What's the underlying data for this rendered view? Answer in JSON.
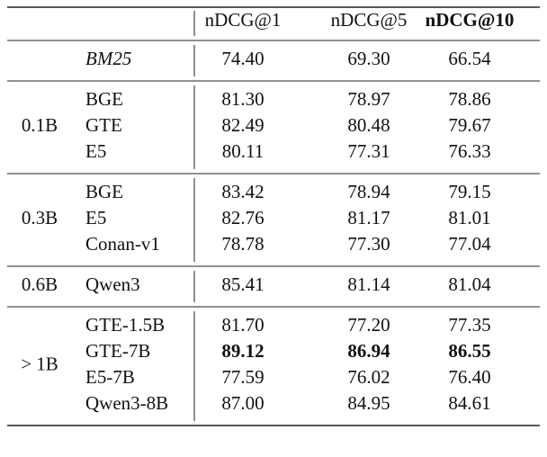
{
  "table": {
    "columns": [
      "nDCG@1",
      "nDCG@5",
      "nDCG@10"
    ],
    "bold_columns": [
      2
    ],
    "groups": [
      {
        "rows": [
          {
            "model": "BM25",
            "italic": true,
            "values": [
              "74.40",
              "69.30",
              "66.54"
            ]
          }
        ]
      },
      {
        "size": "0.1B",
        "rows": [
          {
            "model": "BGE",
            "values": [
              "81.30",
              "78.97",
              "78.86"
            ]
          },
          {
            "model": "GTE",
            "values": [
              "82.49",
              "80.48",
              "79.67"
            ]
          },
          {
            "model": "E5",
            "values": [
              "80.11",
              "77.31",
              "76.33"
            ]
          }
        ]
      },
      {
        "size": "0.3B",
        "rows": [
          {
            "model": "BGE",
            "values": [
              "83.42",
              "78.94",
              "79.15"
            ]
          },
          {
            "model": "E5",
            "values": [
              "82.76",
              "81.17",
              "81.01"
            ]
          },
          {
            "model": "Conan-v1",
            "values": [
              "78.78",
              "77.30",
              "77.04"
            ]
          }
        ]
      },
      {
        "size": "0.6B",
        "rows": [
          {
            "model": "Qwen3",
            "values": [
              "85.41",
              "81.14",
              "81.04"
            ]
          }
        ]
      },
      {
        "size": "> 1B",
        "rows": [
          {
            "model": "GTE-1.5B",
            "values": [
              "81.70",
              "77.20",
              "77.35"
            ]
          },
          {
            "model": "GTE-7B",
            "bold": true,
            "values": [
              "89.12",
              "86.94",
              "86.55"
            ]
          },
          {
            "model": "E5-7B",
            "values": [
              "77.59",
              "76.02",
              "76.40"
            ]
          },
          {
            "model": "Qwen3-8B",
            "values": [
              "87.00",
              "84.95",
              "84.61"
            ]
          }
        ]
      }
    ]
  }
}
